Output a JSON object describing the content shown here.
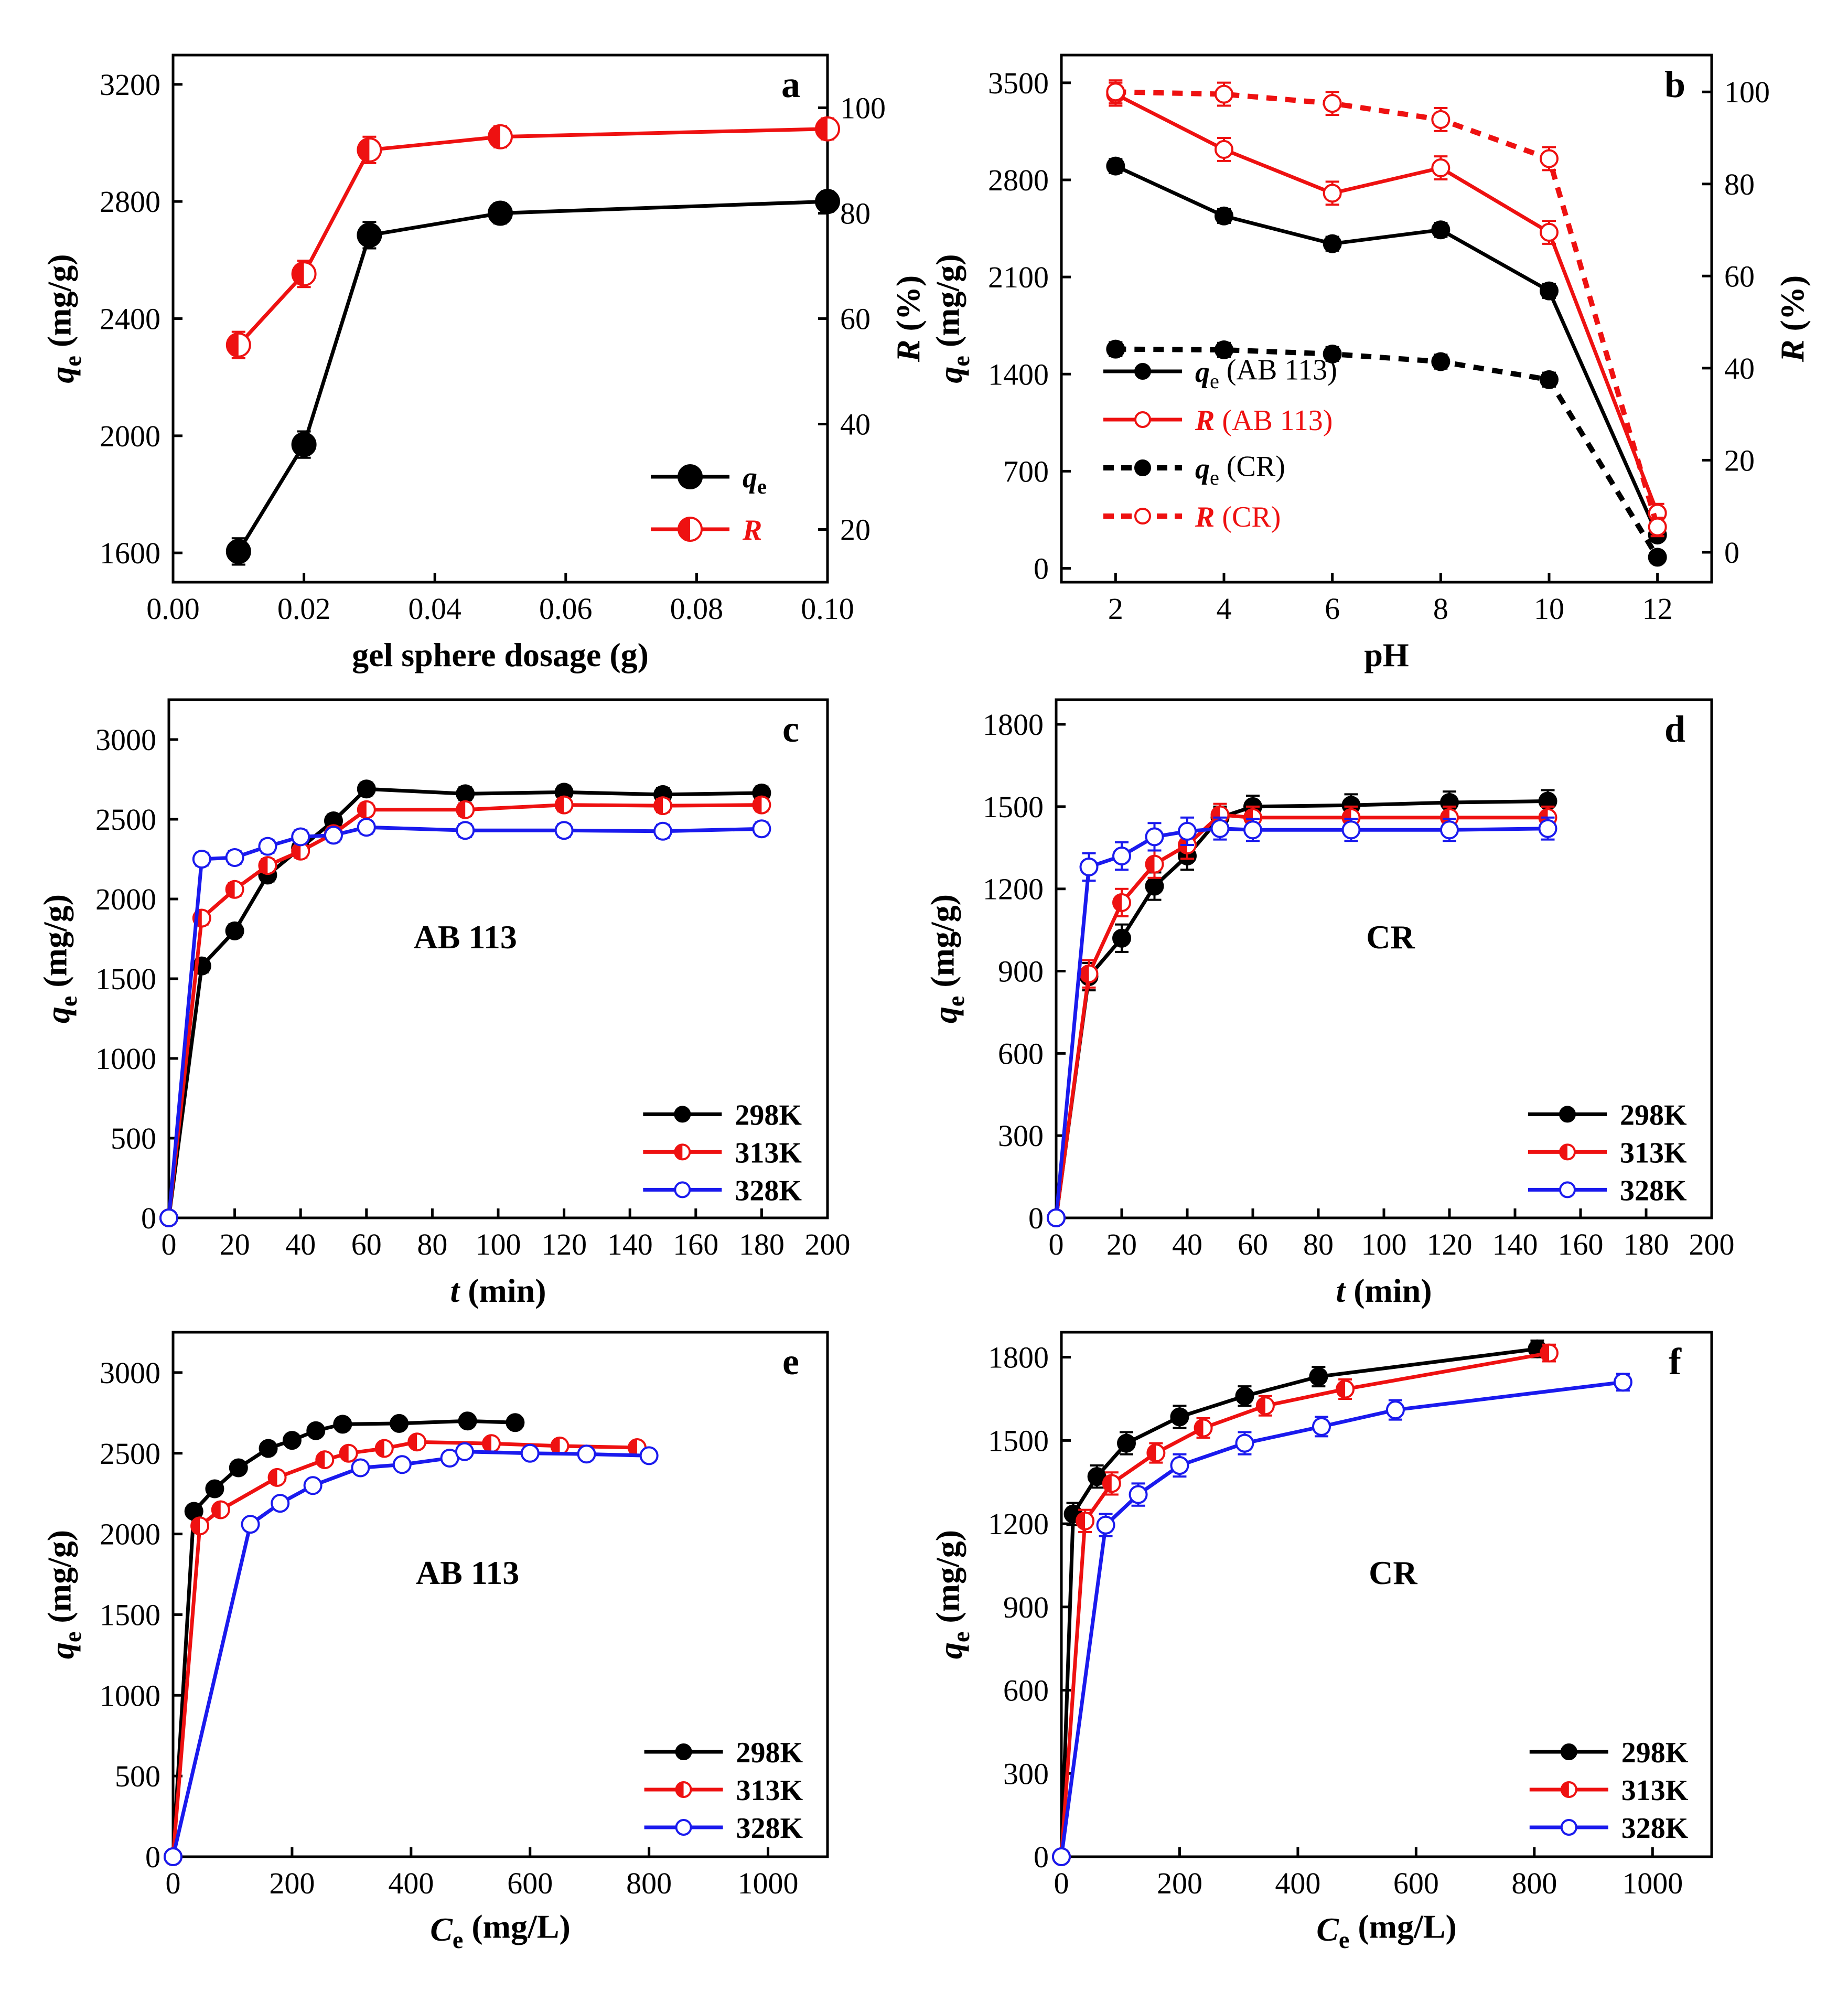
{
  "colors": {
    "black": "#000000",
    "red": "#ee1111",
    "blue": "#1a1aee"
  },
  "chart_data": [
    {
      "id": "a",
      "panel_label": "a",
      "type": "line",
      "xlabel": "gel sphere dosage (g)",
      "ylabel_left": {
        "main": "q",
        "sub": "e",
        "rest": " (mg/g)"
      },
      "ylabel_right": {
        "main": "R",
        "rest": " (%)"
      },
      "xlim": [
        0.0,
        0.1
      ],
      "ylim_left": [
        1500,
        3300
      ],
      "ylim_right": [
        10,
        110
      ],
      "xticks": [
        "0.00",
        "0.02",
        "0.04",
        "0.06",
        "0.08",
        "0.10"
      ],
      "yticks_left": [
        "1600",
        "2000",
        "2400",
        "2800",
        "3200"
      ],
      "yticks_right": [
        "20",
        "40",
        "60",
        "80",
        "100"
      ],
      "series": [
        {
          "name": {
            "main": "q",
            "sub": "e"
          },
          "axis": "left",
          "color": "black",
          "marker": "filled",
          "x": [
            0.01,
            0.02,
            0.03,
            0.05,
            0.1
          ],
          "y": [
            1605,
            1970,
            2685,
            2760,
            2800
          ],
          "err": [
            45,
            45,
            45,
            35,
            35
          ]
        },
        {
          "name": {
            "main": "R"
          },
          "axis": "right",
          "color": "red",
          "marker": "half",
          "x": [
            0.01,
            0.02,
            0.03,
            0.05,
            0.1
          ],
          "y": [
            55,
            68.5,
            92,
            94.5,
            96
          ],
          "err": [
            2.5,
            2.5,
            2.5,
            2,
            2
          ]
        }
      ],
      "legend_position": "bottom-right"
    },
    {
      "id": "b",
      "panel_label": "b",
      "type": "line",
      "xlabel": "pH",
      "ylabel_left": {
        "main": "q",
        "sub": "e",
        "rest": " (mg/g)"
      },
      "ylabel_right": {
        "main": "R",
        "rest": " (%)"
      },
      "xlim": [
        1,
        13
      ],
      "ylim_left": [
        -100,
        3700
      ],
      "ylim_right": [
        -6.5,
        108
      ],
      "xticks": [
        "2",
        "4",
        "6",
        "8",
        "10",
        "12"
      ],
      "yticks_left": [
        "0",
        "700",
        "1400",
        "2100",
        "2800",
        "3500"
      ],
      "yticks_right": [
        "0",
        "20",
        "40",
        "60",
        "80",
        "100"
      ],
      "series": [
        {
          "name": {
            "main": "q",
            "sub": "e",
            "rest": " (AB 113)"
          },
          "axis": "left",
          "color": "black",
          "marker": "filled",
          "dash": false,
          "x": [
            2,
            4,
            6,
            8,
            10,
            12
          ],
          "y": [
            2900,
            2540,
            2340,
            2440,
            2000,
            240
          ],
          "err": [
            50,
            50,
            50,
            50,
            50,
            40
          ]
        },
        {
          "name": {
            "main": "R",
            "rest": " (AB 113)"
          },
          "axis": "right",
          "color": "red",
          "marker": "open",
          "dash": false,
          "x": [
            2,
            4,
            6,
            8,
            10,
            12
          ],
          "y": [
            99.5,
            87.5,
            78,
            83.5,
            69.5,
            8.5
          ],
          "err": [
            2.5,
            2.5,
            2.5,
            2.5,
            2.5,
            2
          ]
        },
        {
          "name": {
            "main": "q",
            "sub": "e",
            "rest": " (CR)"
          },
          "axis": "left",
          "color": "black",
          "marker": "filled",
          "dash": true,
          "x": [
            2,
            4,
            6,
            8,
            10,
            12
          ],
          "y": [
            1580,
            1575,
            1545,
            1490,
            1360,
            80
          ],
          "err": [
            50,
            50,
            50,
            50,
            50,
            40
          ]
        },
        {
          "name": {
            "main": "R",
            "rest": " (CR)"
          },
          "axis": "right",
          "color": "red",
          "marker": "open",
          "dash": true,
          "x": [
            2,
            4,
            6,
            8,
            10,
            12
          ],
          "y": [
            100,
            99.5,
            97.5,
            94,
            85.5,
            5.5
          ],
          "err": [
            2.5,
            2.5,
            2.5,
            2.5,
            2.5,
            2
          ]
        }
      ],
      "legend_position": "bottom-left"
    },
    {
      "id": "c",
      "panel_label": "c",
      "annotation": "AB 113",
      "type": "line",
      "xlabel": {
        "main": "t",
        "rest": " (min)"
      },
      "ylabel_left": {
        "main": "q",
        "sub": "e",
        "rest": " (mg/g)"
      },
      "xlim": [
        0,
        200
      ],
      "ylim_left": [
        0,
        3250
      ],
      "xticks": [
        "0",
        "20",
        "40",
        "60",
        "80",
        "100",
        "120",
        "140",
        "160",
        "180",
        "200"
      ],
      "yticks_left": [
        "0",
        "500",
        "1000",
        "1500",
        "2000",
        "2500",
        "3000"
      ],
      "series": [
        {
          "name": "298K",
          "color": "black",
          "marker": "filled",
          "x": [
            0,
            10,
            20,
            30,
            40,
            50,
            60,
            90,
            120,
            150,
            180
          ],
          "y": [
            0,
            1580,
            1800,
            2150,
            2320,
            2490,
            2690,
            2660,
            2670,
            2655,
            2665
          ],
          "err": [
            0,
            40,
            40,
            40,
            40,
            40,
            40,
            40,
            40,
            40,
            40
          ]
        },
        {
          "name": "313K",
          "color": "red",
          "marker": "half",
          "x": [
            0,
            10,
            20,
            30,
            40,
            50,
            60,
            90,
            120,
            150,
            180
          ],
          "y": [
            0,
            1880,
            2060,
            2210,
            2300,
            2410,
            2560,
            2560,
            2590,
            2585,
            2590
          ],
          "err": [
            0,
            40,
            40,
            40,
            40,
            40,
            40,
            40,
            40,
            40,
            40
          ]
        },
        {
          "name": "328K",
          "color": "blue",
          "marker": "open",
          "x": [
            0,
            10,
            20,
            30,
            40,
            50,
            60,
            90,
            120,
            150,
            180
          ],
          "y": [
            0,
            2250,
            2260,
            2330,
            2390,
            2400,
            2450,
            2430,
            2430,
            2425,
            2440
          ],
          "err": [
            0,
            40,
            40,
            40,
            40,
            40,
            40,
            40,
            40,
            40,
            40
          ]
        }
      ],
      "legend_position": "bottom-right"
    },
    {
      "id": "d",
      "panel_label": "d",
      "annotation": "CR",
      "type": "line",
      "xlabel": {
        "main": "t",
        "rest": " (min)"
      },
      "ylabel_left": {
        "main": "q",
        "sub": "e",
        "rest": " (mg/g)"
      },
      "xlim": [
        0,
        200
      ],
      "ylim_left": [
        0,
        1890
      ],
      "xticks": [
        "0",
        "20",
        "40",
        "60",
        "80",
        "100",
        "120",
        "140",
        "160",
        "180",
        "200"
      ],
      "yticks_left": [
        "0",
        "300",
        "600",
        "900",
        "1200",
        "1500",
        "1800"
      ],
      "series": [
        {
          "name": "298K",
          "color": "black",
          "marker": "filled",
          "x": [
            0,
            10,
            20,
            30,
            40,
            50,
            60,
            90,
            120,
            150
          ],
          "y": [
            0,
            880,
            1020,
            1210,
            1320,
            1460,
            1500,
            1505,
            1515,
            1520
          ],
          "err": [
            0,
            50,
            50,
            50,
            50,
            40,
            40,
            40,
            40,
            40
          ]
        },
        {
          "name": "313K",
          "color": "red",
          "marker": "half",
          "x": [
            0,
            10,
            20,
            30,
            40,
            50,
            60,
            90,
            120,
            150
          ],
          "y": [
            0,
            890,
            1150,
            1290,
            1360,
            1470,
            1460,
            1460,
            1460,
            1460
          ],
          "err": [
            0,
            50,
            50,
            50,
            50,
            40,
            40,
            40,
            40,
            40
          ]
        },
        {
          "name": "328K",
          "color": "blue",
          "marker": "open",
          "x": [
            0,
            10,
            20,
            30,
            40,
            50,
            60,
            90,
            120,
            150
          ],
          "y": [
            0,
            1280,
            1320,
            1390,
            1410,
            1420,
            1415,
            1415,
            1415,
            1420
          ],
          "err": [
            0,
            50,
            50,
            50,
            50,
            40,
            40,
            40,
            40,
            40
          ]
        }
      ],
      "legend_position": "bottom-right"
    },
    {
      "id": "e",
      "panel_label": "e",
      "annotation": "AB 113",
      "type": "line",
      "xlabel": {
        "main": "C",
        "sub": "e",
        "rest": " (mg/L)"
      },
      "ylabel_left": {
        "main": "q",
        "sub": "e",
        "rest": " (mg/g)"
      },
      "xlim": [
        0,
        1100
      ],
      "ylim_left": [
        0,
        3250
      ],
      "xticks": [
        "0",
        "200",
        "400",
        "600",
        "800",
        "1000"
      ],
      "yticks_left": [
        "0",
        "500",
        "1000",
        "1500",
        "2000",
        "2500",
        "3000"
      ],
      "series": [
        {
          "name": "298K",
          "color": "black",
          "marker": "filled",
          "x": [
            0,
            35,
            70,
            110,
            160,
            200,
            240,
            285,
            380,
            495,
            575
          ],
          "y": [
            0,
            2140,
            2280,
            2410,
            2530,
            2580,
            2640,
            2680,
            2685,
            2700,
            2690
          ],
          "err": [
            0,
            30,
            30,
            30,
            30,
            30,
            30,
            25,
            25,
            25,
            25
          ]
        },
        {
          "name": "313K",
          "color": "red",
          "marker": "half",
          "x": [
            0,
            45,
            80,
            175,
            255,
            295,
            355,
            410,
            535,
            650,
            780
          ],
          "y": [
            0,
            2050,
            2150,
            2350,
            2460,
            2500,
            2530,
            2570,
            2560,
            2545,
            2535
          ],
          "err": [
            0,
            30,
            30,
            30,
            30,
            30,
            30,
            30,
            30,
            30,
            30
          ]
        },
        {
          "name": "328K",
          "color": "blue",
          "marker": "open",
          "x": [
            0,
            130,
            180,
            235,
            315,
            385,
            465,
            490,
            600,
            695,
            800
          ],
          "y": [
            0,
            2060,
            2190,
            2300,
            2410,
            2430,
            2470,
            2510,
            2500,
            2495,
            2485
          ],
          "err": [
            0,
            30,
            30,
            30,
            30,
            30,
            30,
            30,
            30,
            30,
            30
          ]
        }
      ],
      "legend_position": "bottom-right"
    },
    {
      "id": "f",
      "panel_label": "f",
      "annotation": "CR",
      "type": "line",
      "xlabel": {
        "main": "C",
        "sub": "e",
        "rest": " (mg/L)"
      },
      "ylabel_left": {
        "main": "q",
        "sub": "e",
        "rest": " (mg/g)"
      },
      "xlim": [
        0,
        1100
      ],
      "ylim_left": [
        0,
        1890
      ],
      "xticks": [
        "0",
        "200",
        "400",
        "600",
        "800",
        "1000"
      ],
      "yticks_left": [
        "0",
        "300",
        "600",
        "900",
        "1200",
        "1500",
        "1800"
      ],
      "series": [
        {
          "name": "298K",
          "color": "black",
          "marker": "filled",
          "x": [
            0,
            20,
            60,
            110,
            200,
            310,
            435,
            805
          ],
          "y": [
            0,
            1235,
            1370,
            1490,
            1585,
            1660,
            1730,
            1830
          ],
          "err": [
            0,
            40,
            40,
            40,
            40,
            35,
            35,
            30
          ]
        },
        {
          "name": "313K",
          "color": "red",
          "marker": "half",
          "x": [
            0,
            40,
            85,
            160,
            240,
            345,
            480,
            825
          ],
          "y": [
            0,
            1210,
            1345,
            1455,
            1545,
            1625,
            1685,
            1815
          ],
          "err": [
            0,
            40,
            40,
            35,
            35,
            35,
            35,
            30
          ]
        },
        {
          "name": "328K",
          "color": "blue",
          "marker": "open",
          "x": [
            0,
            75,
            130,
            200,
            310,
            440,
            565,
            950
          ],
          "y": [
            0,
            1195,
            1305,
            1410,
            1490,
            1550,
            1610,
            1710
          ],
          "err": [
            0,
            40,
            40,
            40,
            40,
            35,
            35,
            30
          ]
        }
      ],
      "legend_position": "bottom-right"
    }
  ]
}
